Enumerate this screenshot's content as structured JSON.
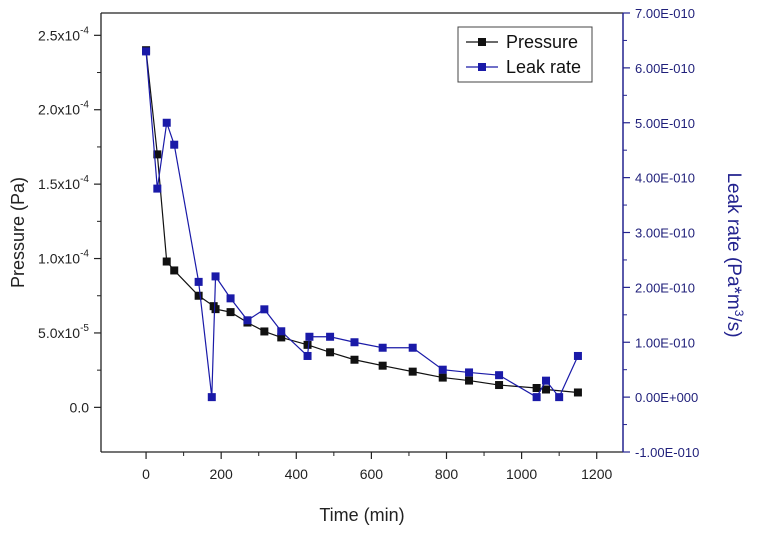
{
  "chart_data": {
    "type": "line",
    "title": "",
    "xlabel": "Time (min)",
    "ylabel": "Pressure (Pa)",
    "y2label": "Leak rate (Pa*m3/s)",
    "xlim": [
      -120,
      1270
    ],
    "ylim": [
      -3e-05,
      0.000265
    ],
    "y2lim": [
      -1e-10,
      7e-10
    ],
    "x_ticks": [
      0,
      200,
      400,
      600,
      800,
      1000,
      1200
    ],
    "x_tick_labels": [
      "0",
      "200",
      "400",
      "600",
      "800",
      "1000",
      "1200"
    ],
    "y_ticks": [
      0,
      5e-05,
      0.0001,
      0.00015,
      0.0002,
      0.00025
    ],
    "y_tick_labels": [
      {
        "mantissa": "0.0",
        "exp": ""
      },
      {
        "mantissa": "5.0x10",
        "exp": "-5"
      },
      {
        "mantissa": "1.0x10",
        "exp": "-4"
      },
      {
        "mantissa": "1.5x10",
        "exp": "-4"
      },
      {
        "mantissa": "2.0x10",
        "exp": "-4"
      },
      {
        "mantissa": "2.5x10",
        "exp": "-4"
      }
    ],
    "y2_ticks": [
      -1e-10,
      0,
      1e-10,
      2e-10,
      3e-10,
      4e-10,
      5e-10,
      6e-10,
      7e-10
    ],
    "y2_tick_labels": [
      "-1.00E-010",
      "0.00E+000",
      "1.00E-010",
      "2.00E-010",
      "3.00E-010",
      "4.00E-010",
      "5.00E-010",
      "6.00E-010",
      "7.00E-010"
    ],
    "legend_position": "top-right",
    "series": [
      {
        "name": "Pressure",
        "axis": "left",
        "color": "#111111",
        "x": [
          0,
          30,
          55,
          75,
          140,
          180,
          185,
          225,
          270,
          315,
          360,
          430,
          490,
          555,
          630,
          710,
          790,
          860,
          940,
          1040,
          1065,
          1150
        ],
        "values": [
          0.00024,
          0.00017,
          9.8e-05,
          9.2e-05,
          7.5e-05,
          6.8e-05,
          6.6e-05,
          6.4e-05,
          5.7e-05,
          5.1e-05,
          4.7e-05,
          4.2e-05,
          3.7e-05,
          3.2e-05,
          2.8e-05,
          2.4e-05,
          2e-05,
          1.8e-05,
          1.5e-05,
          1.3e-05,
          1.2e-05,
          1e-05
        ]
      },
      {
        "name": "Leak rate",
        "axis": "right",
        "color": "#1a1aa8",
        "x": [
          0,
          30,
          55,
          75,
          140,
          175,
          185,
          225,
          270,
          315,
          360,
          430,
          435,
          490,
          555,
          630,
          710,
          790,
          860,
          940,
          1040,
          1065,
          1100,
          1150
        ],
        "values": [
          6.3e-10,
          3.8e-10,
          5e-10,
          4.6e-10,
          2.1e-10,
          0.0,
          2.2e-10,
          1.8e-10,
          1.4e-10,
          1.6e-10,
          1.2e-10,
          7.5e-11,
          1.1e-10,
          1.1e-10,
          1e-10,
          9e-11,
          9e-11,
          5e-11,
          4.5e-11,
          4e-11,
          0.0,
          3e-11,
          0.0,
          7.5e-11
        ]
      }
    ],
    "y2label_parts": {
      "main": "Leak rate (Pa*m",
      "sup": "3",
      "tail": "/s)"
    }
  }
}
